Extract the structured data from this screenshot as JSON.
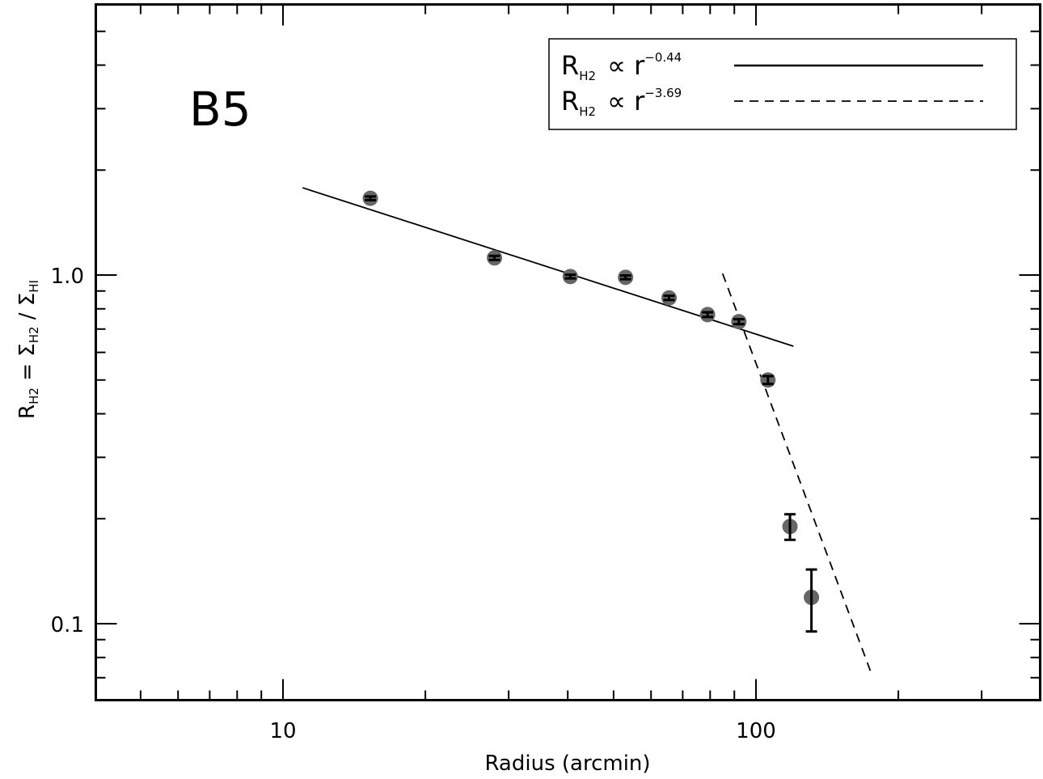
{
  "chart_data": {
    "type": "scatter",
    "panel_label": "B5",
    "xlabel": "Radius (arcmin)",
    "ylabel": {
      "prefix": "R",
      "sub1": "H2",
      "mid1": " = Σ",
      "sub2": "H2",
      "mid2": " / Σ",
      "sub3": "HI"
    },
    "x_scale": "log",
    "y_scale": "log",
    "xlim": [
      4.5,
      350
    ],
    "ylim": [
      0.065,
      5.0
    ],
    "x_ticklabels": [
      "10",
      "100"
    ],
    "y_ticklabels": [
      "0.1",
      "1.0"
    ],
    "grid": false,
    "legend_position": "top-right",
    "points": [
      {
        "x": 15.3,
        "y": 1.66,
        "err": 0.02
      },
      {
        "x": 28.0,
        "y": 1.12,
        "err": 0.015
      },
      {
        "x": 40.5,
        "y": 0.99,
        "err": 0.012
      },
      {
        "x": 53.0,
        "y": 0.985,
        "err": 0.012
      },
      {
        "x": 65.5,
        "y": 0.86,
        "err": 0.012
      },
      {
        "x": 79.0,
        "y": 0.77,
        "err": 0.012
      },
      {
        "x": 92.0,
        "y": 0.735,
        "err": 0.012
      },
      {
        "x": 106.0,
        "y": 0.5,
        "err": 0.013
      },
      {
        "x": 118.0,
        "y": 0.19,
        "err": 0.016
      },
      {
        "x": 131.0,
        "y": 0.119,
        "err": 0.024
      }
    ],
    "series": [
      {
        "label_base": "R",
        "label_sub": "H2",
        "label_rel": "∝ r",
        "label_exp": "−0.44",
        "style": "solid",
        "x": [
          11.0,
          120.0
        ],
        "y": [
          1.78,
          0.625
        ]
      },
      {
        "label_base": "R",
        "label_sub": "H2",
        "label_rel": "∝ r",
        "label_exp": "−3.69",
        "style": "dashed",
        "x": [
          85.0,
          175.0
        ],
        "y": [
          1.01,
          0.0725
        ]
      }
    ],
    "colors": {
      "marker": "#666666",
      "errorbar": "#000000",
      "line": "#000000"
    }
  }
}
